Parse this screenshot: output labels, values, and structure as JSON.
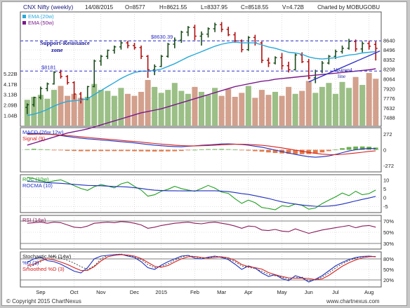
{
  "header": {
    "title": "CNX Nifty (weekly)",
    "date": "14/08/2015",
    "open": "O=8577",
    "high": "H=8621.55",
    "low": "L=8337.95",
    "close": "C=8518.55",
    "volume": "V=4.72B",
    "charted_by": "Charted by MOBUGOBU"
  },
  "footer": {
    "copyright": "© Copyright 2015 ChartNexus",
    "site": "www.chartnexus.com"
  },
  "colors": {
    "up_candle": "#1a4d1a",
    "down_candle": "#b01010",
    "ema20": "#29a9d9",
    "ema50": "#7a1a8a",
    "volume_up": "#9bbf86",
    "volume_down": "#d2a08c",
    "guide": "#2e2ec8",
    "macd": "#1f2fbf",
    "signal": "#d82020",
    "roc": "#20a020",
    "rocma": "#1f2fbf",
    "rsi": "#8a1a5a",
    "stoch_k": "#1f2fbf",
    "stoch_d": "#d82020"
  },
  "chart_data": [
    {
      "type": "candlestick",
      "panel": "price",
      "legend": [
        "EMA (20w)",
        "EMA (50w)"
      ],
      "x_labels": [
        "Sep",
        "Oct",
        "Nov",
        "Dec",
        "2015",
        "Feb",
        "Mar",
        "Apr",
        "May",
        "Jun",
        "Jul",
        "Aug"
      ],
      "y_ticks": [
        7488,
        7632,
        7776,
        7920,
        8064,
        8208,
        8352,
        8496,
        8640
      ],
      "ylim": [
        7360,
        9060
      ],
      "annotations": {
        "resistance_label": "$8630.39",
        "resistance_value": 8630.39,
        "support_label": "$8181",
        "support_value": 8181,
        "zone_line1": "Support-Resistance",
        "zone_line2": "zone",
        "uptrend_line1": "Up trend",
        "uptrend_line2": "line"
      },
      "candles": [
        {
          "o": 7640,
          "h": 7700,
          "l": 7540,
          "c": 7680
        },
        {
          "o": 7680,
          "h": 7800,
          "l": 7650,
          "c": 7790
        },
        {
          "o": 7790,
          "h": 7950,
          "l": 7760,
          "c": 7920
        },
        {
          "o": 7920,
          "h": 8010,
          "l": 7880,
          "c": 7990
        },
        {
          "o": 7990,
          "h": 8180,
          "l": 7980,
          "c": 8160
        },
        {
          "o": 8160,
          "h": 8200,
          "l": 8070,
          "c": 8100
        },
        {
          "o": 8100,
          "h": 8120,
          "l": 7980,
          "c": 8010
        },
        {
          "o": 8010,
          "h": 8030,
          "l": 7760,
          "c": 7840
        },
        {
          "o": 7840,
          "h": 7870,
          "l": 7700,
          "c": 7760
        },
        {
          "o": 7760,
          "h": 7960,
          "l": 7750,
          "c": 7950
        },
        {
          "o": 7950,
          "h": 8350,
          "l": 7940,
          "c": 8330
        },
        {
          "o": 8330,
          "h": 8420,
          "l": 8260,
          "c": 8400
        },
        {
          "o": 8400,
          "h": 8500,
          "l": 8360,
          "c": 8490
        },
        {
          "o": 8490,
          "h": 8560,
          "l": 8440,
          "c": 8540
        },
        {
          "o": 8540,
          "h": 8640,
          "l": 8500,
          "c": 8600
        },
        {
          "o": 8600,
          "h": 8630,
          "l": 8520,
          "c": 8560
        },
        {
          "o": 8560,
          "h": 8600,
          "l": 8500,
          "c": 8530
        },
        {
          "o": 8530,
          "h": 8560,
          "l": 8360,
          "c": 8400
        },
        {
          "o": 8400,
          "h": 8420,
          "l": 8080,
          "c": 8200
        },
        {
          "o": 8200,
          "h": 8280,
          "l": 8120,
          "c": 8250
        },
        {
          "o": 8250,
          "h": 8420,
          "l": 8240,
          "c": 8400
        },
        {
          "o": 8400,
          "h": 8600,
          "l": 8380,
          "c": 8580
        },
        {
          "o": 8580,
          "h": 8680,
          "l": 8520,
          "c": 8640
        },
        {
          "o": 8640,
          "h": 8780,
          "l": 8600,
          "c": 8760
        },
        {
          "o": 8760,
          "h": 8850,
          "l": 8700,
          "c": 8830
        },
        {
          "o": 8830,
          "h": 8870,
          "l": 8640,
          "c": 8700
        },
        {
          "o": 8700,
          "h": 8770,
          "l": 8560,
          "c": 8730
        },
        {
          "o": 8730,
          "h": 8830,
          "l": 8680,
          "c": 8810
        },
        {
          "o": 8810,
          "h": 8900,
          "l": 8760,
          "c": 8870
        },
        {
          "o": 8870,
          "h": 8910,
          "l": 8760,
          "c": 8800
        },
        {
          "o": 8800,
          "h": 8840,
          "l": 8700,
          "c": 8720
        },
        {
          "o": 8720,
          "h": 8760,
          "l": 8600,
          "c": 8630
        },
        {
          "o": 8630,
          "h": 8650,
          "l": 8460,
          "c": 8500
        },
        {
          "o": 8500,
          "h": 8700,
          "l": 8480,
          "c": 8680
        },
        {
          "o": 8680,
          "h": 8720,
          "l": 8560,
          "c": 8600
        },
        {
          "o": 8600,
          "h": 8620,
          "l": 8300,
          "c": 8340
        },
        {
          "o": 8340,
          "h": 8380,
          "l": 8240,
          "c": 8300
        },
        {
          "o": 8300,
          "h": 8400,
          "l": 8280,
          "c": 8380
        },
        {
          "o": 8380,
          "h": 8450,
          "l": 8200,
          "c": 8260
        },
        {
          "o": 8260,
          "h": 8320,
          "l": 8160,
          "c": 8200
        },
        {
          "o": 8200,
          "h": 8440,
          "l": 8190,
          "c": 8420
        },
        {
          "o": 8420,
          "h": 8460,
          "l": 8300,
          "c": 8320
        },
        {
          "o": 8320,
          "h": 8360,
          "l": 8060,
          "c": 8080
        },
        {
          "o": 8080,
          "h": 8200,
          "l": 8000,
          "c": 8180
        },
        {
          "o": 8180,
          "h": 8330,
          "l": 8150,
          "c": 8300
        },
        {
          "o": 8300,
          "h": 8420,
          "l": 8280,
          "c": 8400
        },
        {
          "o": 8400,
          "h": 8500,
          "l": 8360,
          "c": 8470
        },
        {
          "o": 8470,
          "h": 8560,
          "l": 8440,
          "c": 8520
        },
        {
          "o": 8520,
          "h": 8660,
          "l": 8500,
          "c": 8620
        },
        {
          "o": 8620,
          "h": 8650,
          "l": 8470,
          "c": 8510
        },
        {
          "o": 8510,
          "h": 8620,
          "l": 8460,
          "c": 8590
        },
        {
          "o": 8590,
          "h": 8630,
          "l": 8500,
          "c": 8550
        },
        {
          "o": 8577,
          "h": 8621.55,
          "l": 8337.95,
          "c": 8518.55
        }
      ],
      "ema20": [
        7520,
        7540,
        7570,
        7610,
        7660,
        7700,
        7730,
        7740,
        7750,
        7770,
        7830,
        7890,
        7950,
        8010,
        8070,
        8120,
        8160,
        8180,
        8180,
        8190,
        8210,
        8250,
        8290,
        8340,
        8390,
        8430,
        8470,
        8510,
        8550,
        8580,
        8600,
        8610,
        8600,
        8600,
        8600,
        8570,
        8540,
        8520,
        8490,
        8460,
        8450,
        8430,
        8390,
        8370,
        8360,
        8370,
        8380,
        8400,
        8420,
        8430,
        8450,
        8460,
        8470
      ],
      "ema50": [
        7080,
        7110,
        7140,
        7170,
        7200,
        7230,
        7260,
        7280,
        7300,
        7320,
        7350,
        7380,
        7410,
        7440,
        7470,
        7500,
        7530,
        7560,
        7580,
        7600,
        7620,
        7650,
        7680,
        7710,
        7740,
        7770,
        7800,
        7830,
        7860,
        7890,
        7920,
        7950,
        7970,
        7990,
        8010,
        8030,
        8040,
        8060,
        8070,
        8080,
        8090,
        8100,
        8110,
        8120,
        8130,
        8140,
        8150,
        8160,
        8170,
        8180,
        8190,
        8200,
        8215
      ],
      "volume_axis_labels": [
        "5.22B",
        "4.17B",
        "3.13B",
        "2.09B",
        "1.04B"
      ],
      "volume_max": 5.8,
      "volumes": [
        2.6,
        2.9,
        3.1,
        2.7,
        3.6,
        4.0,
        3.0,
        3.2,
        2.8,
        2.9,
        4.2,
        3.6,
        3.5,
        3.0,
        3.8,
        3.2,
        3.0,
        3.4,
        4.6,
        3.9,
        3.3,
        3.6,
        4.3,
        3.5,
        3.2,
        3.9,
        3.4,
        3.1,
        3.8,
        3.0,
        3.7,
        2.9,
        3.3,
        4.0,
        2.8,
        3.6,
        3.1,
        3.4,
        3.0,
        3.9,
        3.2,
        3.5,
        4.5,
        3.3,
        3.9,
        4.3,
        3.2,
        4.4,
        3.8,
        4.9,
        4.1,
        5.3,
        4.72
      ]
    },
    {
      "type": "line",
      "panel": "macd",
      "legend": [
        "MACD (26w,12w)",
        "Signal (9)"
      ],
      "y_ticks": [
        272,
        0,
        -272
      ],
      "ylim": [
        -380,
        380
      ],
      "macd": [
        275,
        285,
        280,
        272,
        260,
        245,
        228,
        215,
        200,
        188,
        180,
        170,
        160,
        150,
        140,
        130,
        118,
        105,
        92,
        80,
        70,
        62,
        55,
        52,
        60,
        68,
        78,
        85,
        92,
        100,
        102,
        98,
        90,
        78,
        62,
        45,
        20,
        -5,
        -30,
        -55,
        -80,
        -100,
        -118,
        -128,
        -120,
        -105,
        -80,
        -50,
        -20,
        0,
        15,
        25,
        20
      ],
      "signal": [
        265,
        268,
        270,
        268,
        262,
        255,
        245,
        235,
        224,
        212,
        202,
        192,
        182,
        172,
        162,
        152,
        142,
        131,
        120,
        109,
        98,
        89,
        80,
        72,
        68,
        68,
        70,
        74,
        80,
        86,
        92,
        95,
        95,
        92,
        86,
        77,
        65,
        50,
        32,
        14,
        -6,
        -25,
        -45,
        -62,
        -75,
        -82,
        -83,
        -78,
        -68,
        -56,
        -42,
        -28,
        -18
      ],
      "histogram": [
        10,
        17,
        10,
        4,
        -2,
        -10,
        -17,
        -20,
        -24,
        -24,
        -22,
        -22,
        -22,
        -22,
        -22,
        -22,
        -24,
        -26,
        -28,
        -29,
        -28,
        -27,
        -25,
        -20,
        -8,
        0,
        8,
        11,
        12,
        14,
        10,
        3,
        -5,
        -14,
        -24,
        -32,
        -45,
        -55,
        -62,
        -69,
        -74,
        -75,
        -73,
        -66,
        -45,
        -23,
        3,
        28,
        48,
        56,
        57,
        53,
        38
      ]
    },
    {
      "type": "line",
      "panel": "roc",
      "legend": [
        "ROC (10w)",
        "ROCMA (10)"
      ],
      "y_ticks": [
        10,
        5,
        0,
        -5
      ],
      "ylim": [
        -8.5,
        13
      ],
      "roc": [
        11.5,
        10.8,
        9.6,
        8.7,
        9.5,
        10.1,
        8.5,
        6.8,
        5.2,
        4.1,
        6.2,
        7.4,
        6.6,
        5.5,
        7.8,
        8.8,
        6.4,
        4.3,
        0.8,
        1.6,
        3.6,
        4.7,
        6.4,
        5.1,
        4.3,
        3.6,
        5.2,
        6.9,
        5.4,
        3.1,
        2.4,
        -0.6,
        -3.3,
        -1.4,
        -2.9,
        -5.6,
        -6.2,
        -6.9,
        -4.6,
        -5.1,
        -3.6,
        -4.4,
        -6.6,
        -5.9,
        -3.4,
        -1.4,
        0.4,
        2.6,
        1.1,
        3.6,
        1.6,
        2.3,
        4.3
      ],
      "rocma": [
        9.2,
        9.0,
        8.8,
        8.5,
        8.3,
        8.1,
        7.8,
        7.5,
        7.2,
        6.9,
        6.8,
        6.7,
        6.5,
        6.3,
        6.2,
        6.0,
        5.6,
        5.2,
        4.6,
        4.2,
        4.0,
        3.9,
        3.9,
        3.8,
        3.8,
        3.8,
        3.9,
        3.9,
        3.9,
        3.7,
        3.4,
        2.9,
        2.3,
        1.8,
        1.1,
        0.3,
        -0.5,
        -1.5,
        -2.4,
        -3.1,
        -3.7,
        -4.2,
        -4.6,
        -4.9,
        -5.0,
        -4.8,
        -4.4,
        -3.7,
        -2.8,
        -1.9,
        -1.0,
        -0.2,
        0.7
      ]
    },
    {
      "type": "line",
      "panel": "rsi",
      "legend": [
        "RSI (14w)"
      ],
      "y_ticks": [
        "70%",
        "50%",
        "30%"
      ],
      "ylim": [
        20,
        80
      ],
      "rsi": [
        66,
        67,
        68,
        66,
        68,
        67,
        63,
        59,
        58,
        61,
        66,
        67,
        68,
        67,
        69,
        68,
        66,
        63,
        57,
        59,
        62,
        64,
        66,
        67,
        68,
        66,
        65,
        67,
        68,
        66,
        64,
        61,
        57,
        61,
        60,
        54,
        53,
        55,
        52,
        51,
        56,
        52,
        48,
        51,
        54,
        56,
        58,
        60,
        62,
        58,
        61,
        62,
        59
      ]
    },
    {
      "type": "line",
      "panel": "stochastic",
      "legend": [
        "Stochastic %K (14w)",
        "%D (3)",
        "Smoothed %D (3)"
      ],
      "y_ticks": [
        "80%",
        "50%",
        "20%"
      ],
      "ylim": [
        0,
        100
      ],
      "k": [
        70,
        80,
        85,
        75,
        72,
        65,
        55,
        45,
        40,
        55,
        80,
        88,
        90,
        92,
        93,
        88,
        84,
        72,
        55,
        50,
        62,
        72,
        80,
        88,
        90,
        82,
        80,
        85,
        88,
        84,
        78,
        65,
        50,
        60,
        54,
        40,
        30,
        35,
        24,
        18,
        32,
        26,
        14,
        22,
        32,
        46,
        60,
        70,
        78,
        84,
        87,
        88,
        86
      ],
      "d": [
        60,
        65,
        75,
        80,
        77,
        71,
        64,
        55,
        47,
        47,
        58,
        74,
        86,
        90,
        92,
        91,
        88,
        81,
        70,
        59,
        56,
        61,
        71,
        80,
        86,
        87,
        84,
        82,
        84,
        86,
        83,
        76,
        64,
        58,
        55,
        51,
        41,
        35,
        30,
        26,
        25,
        25,
        24,
        21,
        23,
        33,
        46,
        59,
        69,
        77,
        83,
        86,
        87
      ],
      "dashed": [
        55,
        62,
        72,
        83,
        88,
        82,
        76,
        68,
        58,
        50,
        60,
        80,
        90,
        92,
        94,
        90,
        85,
        78,
        64,
        55,
        58,
        66,
        76,
        85,
        90,
        86,
        82,
        84,
        87,
        86,
        80,
        72,
        60,
        56,
        52,
        45,
        36,
        32,
        28,
        22,
        26,
        28,
        18,
        20,
        28,
        40,
        54,
        66,
        75,
        82,
        86,
        88,
        86
      ],
      "smoothed_d": [
        58,
        61,
        67,
        73,
        77,
        76,
        71,
        63,
        55,
        50,
        51,
        60,
        73,
        83,
        89,
        91,
        90,
        87,
        80,
        70,
        62,
        59,
        63,
        71,
        79,
        84,
        86,
        84,
        83,
        84,
        84,
        82,
        74,
        66,
        59,
        55,
        49,
        42,
        35,
        30,
        27,
        25,
        25,
        23,
        22,
        26,
        34,
        46,
        58,
        68,
        76,
        82,
        85
      ]
    }
  ]
}
